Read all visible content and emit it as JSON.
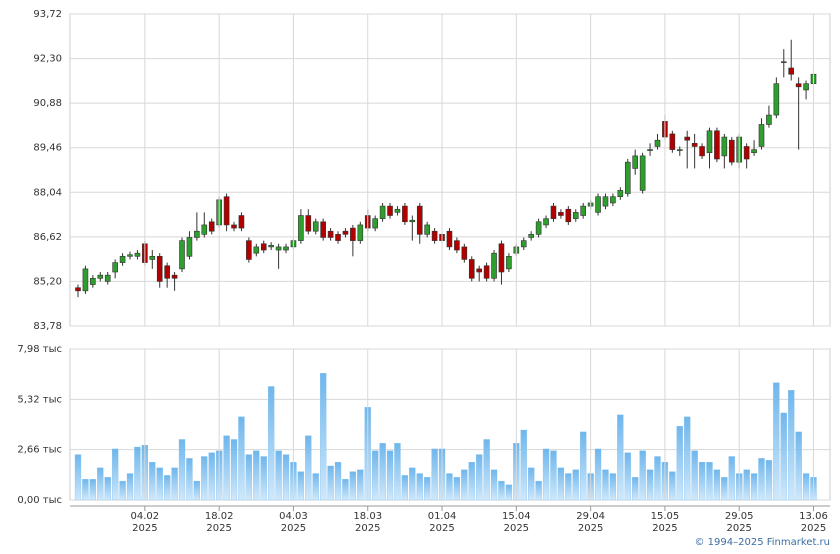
{
  "chart_data": [
    {
      "type": "candlestick",
      "up_color": "#2e9e2e",
      "down_color": "#b00000",
      "grid": true,
      "ylim": [
        83.78,
        93.72
      ],
      "yticks": [
        {
          "value": 83.78,
          "label": "83,78"
        },
        {
          "value": 85.2,
          "label": "85,20"
        },
        {
          "value": 86.62,
          "label": "86,62"
        },
        {
          "value": 88.04,
          "label": "88,04"
        },
        {
          "value": 89.46,
          "label": "89,46"
        },
        {
          "value": 90.88,
          "label": "90,88"
        },
        {
          "value": 92.3,
          "label": "92,30"
        },
        {
          "value": 93.72,
          "label": "93,72"
        }
      ],
      "open": [
        85.0,
        84.9,
        85.1,
        85.3,
        85.2,
        85.5,
        85.8,
        86.0,
        86.0,
        86.4,
        85.9,
        86.0,
        85.7,
        85.4,
        85.6,
        86.0,
        86.6,
        86.7,
        87.1,
        87.0,
        87.9,
        87.0,
        87.3,
        86.5,
        86.1,
        86.4,
        86.3,
        86.2,
        86.2,
        86.3,
        86.5,
        87.3,
        86.8,
        87.1,
        86.8,
        86.7,
        86.8,
        86.9,
        86.5,
        87.3,
        86.9,
        87.2,
        87.6,
        87.4,
        87.6,
        87.1,
        87.6,
        86.7,
        86.8,
        86.7,
        86.8,
        86.5,
        86.3,
        85.9,
        85.6,
        85.7,
        85.3,
        86.4,
        85.6,
        86.1,
        86.3,
        86.6,
        86.7,
        87.0,
        87.6,
        87.4,
        87.5,
        87.2,
        87.3,
        87.6,
        87.4,
        87.6,
        87.7,
        87.9,
        88.0,
        88.8,
        88.1,
        89.4,
        89.5,
        90.3,
        89.9,
        89.4,
        89.8,
        89.6,
        89.5,
        89.3,
        90.0,
        89.2,
        89.7,
        89.0,
        89.5,
        89.3,
        89.5,
        90.2,
        90.5,
        92.2,
        92.0,
        91.5,
        91.3,
        91.5
      ],
      "high": [
        85.1,
        85.7,
        85.4,
        85.5,
        85.5,
        85.9,
        86.1,
        86.15,
        86.2,
        86.5,
        86.2,
        86.1,
        85.8,
        85.5,
        86.6,
        86.8,
        87.4,
        87.4,
        87.2,
        87.9,
        88.0,
        87.1,
        87.4,
        86.6,
        86.4,
        86.5,
        86.45,
        86.4,
        86.4,
        86.6,
        87.5,
        87.5,
        87.2,
        87.2,
        86.9,
        86.8,
        86.9,
        87.0,
        87.1,
        87.5,
        87.3,
        87.7,
        87.7,
        87.6,
        87.7,
        87.3,
        87.7,
        87.1,
        86.9,
        86.8,
        86.9,
        86.6,
        86.4,
        86.0,
        85.7,
        85.8,
        86.2,
        86.5,
        86.1,
        86.4,
        86.6,
        86.8,
        87.2,
        87.3,
        87.7,
        87.5,
        87.6,
        87.5,
        87.7,
        87.8,
        88.0,
        88.0,
        88.0,
        88.2,
        89.1,
        89.4,
        89.3,
        89.6,
        89.9,
        90.5,
        90.0,
        89.5,
        90.0,
        89.9,
        89.6,
        90.1,
        90.1,
        89.9,
        89.8,
        89.9,
        89.6,
        89.7,
        90.4,
        90.8,
        91.7,
        92.6,
        92.9,
        91.7,
        91.6,
        91.9
      ],
      "low": [
        84.7,
        84.8,
        85.0,
        85.2,
        85.1,
        85.3,
        85.7,
        85.9,
        85.9,
        85.7,
        85.6,
        85.0,
        85.0,
        84.9,
        85.5,
        85.9,
        86.5,
        86.6,
        86.7,
        86.9,
        86.8,
        86.8,
        86.8,
        85.8,
        86.0,
        86.1,
        86.2,
        85.6,
        86.1,
        86.2,
        86.4,
        86.7,
        86.7,
        86.5,
        86.5,
        86.4,
        86.6,
        86.0,
        86.4,
        86.8,
        86.8,
        87.1,
        87.2,
        87.3,
        87.0,
        86.5,
        86.4,
        86.6,
        86.4,
        86.4,
        86.2,
        86.1,
        85.8,
        85.2,
        85.2,
        85.2,
        85.2,
        85.1,
        85.5,
        86.0,
        86.2,
        86.5,
        86.6,
        86.9,
        87.1,
        87.2,
        87.0,
        87.1,
        87.2,
        87.5,
        87.3,
        87.5,
        87.6,
        87.8,
        87.9,
        88.6,
        88.0,
        89.2,
        89.4,
        89.7,
        89.3,
        89.2,
        88.8,
        88.8,
        89.1,
        88.8,
        89.0,
        88.8,
        88.9,
        88.8,
        88.8,
        89.2,
        89.4,
        90.1,
        90.4,
        91.7,
        91.6,
        89.4,
        91.0,
        91.4
      ],
      "close": [
        84.9,
        85.6,
        85.3,
        85.4,
        85.4,
        85.8,
        86.0,
        86.05,
        86.1,
        85.8,
        86.0,
        85.2,
        85.3,
        85.3,
        86.5,
        86.6,
        86.8,
        87.0,
        86.8,
        87.8,
        87.0,
        86.9,
        86.9,
        85.9,
        86.3,
        86.2,
        86.35,
        86.3,
        86.3,
        86.5,
        87.3,
        86.8,
        87.1,
        86.6,
        86.6,
        86.5,
        86.7,
        86.5,
        87.0,
        86.9,
        87.2,
        87.6,
        87.3,
        87.5,
        87.1,
        87.15,
        86.7,
        87.0,
        86.5,
        86.5,
        86.3,
        86.2,
        85.9,
        85.3,
        85.5,
        85.3,
        86.1,
        85.5,
        86.0,
        86.3,
        86.5,
        86.7,
        87.1,
        87.2,
        87.2,
        87.3,
        87.1,
        87.4,
        87.6,
        87.7,
        87.9,
        87.9,
        87.9,
        88.1,
        89.0,
        89.2,
        89.2,
        89.4,
        89.7,
        89.8,
        89.4,
        89.4,
        89.7,
        89.5,
        89.2,
        90.0,
        89.1,
        89.8,
        89.0,
        89.8,
        89.1,
        89.4,
        90.2,
        90.5,
        91.5,
        92.2,
        91.8,
        91.4,
        91.5,
        91.8
      ]
    },
    {
      "type": "bar",
      "color": "#7fc0ee",
      "grid": true,
      "ylim": [
        0,
        7.98
      ],
      "yticks": [
        {
          "value": 0,
          "label": "0,00 тыс"
        },
        {
          "value": 2.66,
          "label": "2,66 тыс"
        },
        {
          "value": 5.32,
          "label": "5,32 тыс"
        },
        {
          "value": 7.98,
          "label": "7,98 тыс"
        }
      ],
      "categories": [
        null,
        null,
        null,
        null,
        null,
        null,
        null,
        null,
        null,
        "04.02\n2025",
        null,
        null,
        null,
        null,
        null,
        null,
        null,
        null,
        null,
        "18.02\n2025",
        null,
        null,
        null,
        null,
        null,
        null,
        null,
        null,
        null,
        "04.03\n2025",
        null,
        null,
        null,
        null,
        null,
        null,
        null,
        null,
        null,
        "18.03\n2025",
        null,
        null,
        null,
        null,
        null,
        null,
        null,
        null,
        null,
        "01.04\n2025",
        null,
        null,
        null,
        null,
        null,
        null,
        null,
        null,
        null,
        "15.04\n2025",
        null,
        null,
        null,
        null,
        null,
        null,
        null,
        null,
        null,
        "29.04\n2025",
        null,
        null,
        null,
        null,
        null,
        null,
        null,
        null,
        null,
        "15.05\n2025",
        null,
        null,
        null,
        null,
        null,
        null,
        null,
        null,
        null,
        "29.05\n2025",
        null,
        null,
        null,
        null,
        null,
        null,
        null,
        null,
        null,
        "13.06\n2025"
      ],
      "values": [
        2.4,
        1.1,
        1.1,
        1.7,
        1.2,
        2.7,
        1.0,
        1.4,
        2.8,
        2.9,
        2.0,
        1.7,
        1.3,
        1.7,
        3.2,
        2.2,
        1.0,
        2.3,
        2.5,
        2.6,
        3.4,
        3.2,
        4.4,
        2.4,
        2.6,
        2.3,
        6.0,
        2.6,
        2.4,
        2.0,
        1.5,
        3.4,
        1.4,
        6.7,
        1.8,
        2.0,
        1.1,
        1.5,
        1.6,
        4.9,
        2.6,
        3.0,
        2.6,
        3.0,
        1.3,
        1.7,
        1.4,
        1.2,
        2.7,
        2.7,
        1.4,
        1.2,
        1.6,
        2.0,
        2.4,
        3.2,
        1.6,
        1.0,
        0.8,
        3.0,
        3.7,
        1.7,
        1.0,
        2.7,
        2.6,
        1.7,
        1.4,
        1.6,
        3.6,
        1.4,
        2.7,
        1.6,
        1.4,
        4.5,
        2.5,
        1.2,
        2.6,
        1.6,
        2.3,
        2.0,
        1.5,
        3.9,
        4.4,
        2.6,
        2.0,
        2.0,
        1.6,
        1.2,
        2.3,
        1.4,
        1.6,
        1.4,
        2.2,
        2.1,
        6.2,
        4.6,
        5.8,
        3.6,
        1.4,
        1.2
      ],
      "copyright": "© 1994–2025 Finmarket.ru"
    }
  ]
}
